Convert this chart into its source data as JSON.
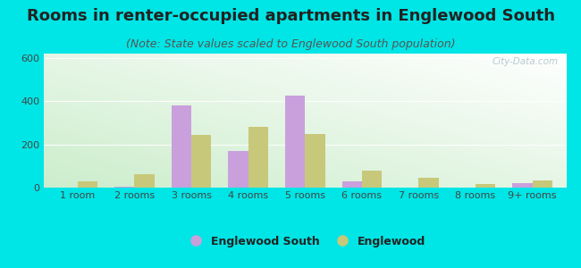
{
  "categories": [
    "1 room",
    "2 rooms",
    "3 rooms",
    "4 rooms",
    "5 rooms",
    "6 rooms",
    "7 rooms",
    "8 rooms",
    "9+ rooms"
  ],
  "englewood_south": [
    0,
    5,
    380,
    170,
    425,
    30,
    0,
    0,
    20
  ],
  "englewood": [
    30,
    60,
    245,
    280,
    248,
    80,
    45,
    15,
    35
  ],
  "color_es": "#c9a0dc",
  "color_eng": "#c8c87a",
  "title": "Rooms in renter-occupied apartments in Englewood South",
  "subtitle": "(Note: State values scaled to Englewood South population)",
  "legend_es": "Englewood South",
  "legend_eng": "Englewood",
  "ylim": [
    0,
    620
  ],
  "yticks": [
    0,
    200,
    400,
    600
  ],
  "bg_color": "#00e5e5",
  "watermark": "City-Data.com",
  "bar_width": 0.35,
  "title_fontsize": 13,
  "subtitle_fontsize": 9,
  "tick_fontsize": 8,
  "legend_fontsize": 9
}
